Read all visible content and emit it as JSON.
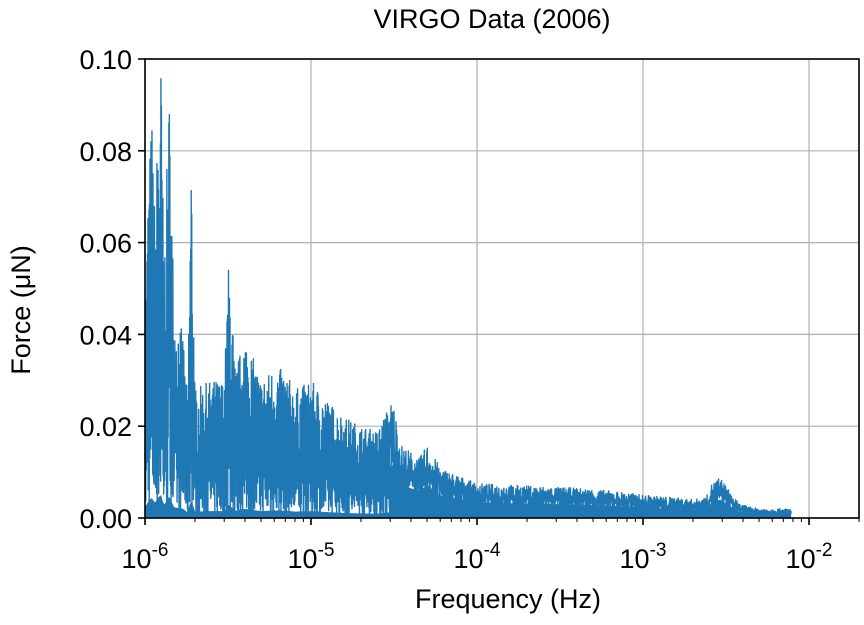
{
  "chart_data": {
    "type": "line",
    "title": "VIRGO Data (2006)",
    "xlabel": "Frequency (Hz)",
    "ylabel": "Force (μN)",
    "xscale": "log",
    "xlim": [
      1e-06,
      0.02
    ],
    "ylim": [
      0,
      0.1
    ],
    "grid": true,
    "color": "#1f77b4",
    "x_ticks": [
      {
        "value": 1e-06,
        "base": "10",
        "exp": "-6"
      },
      {
        "value": 1e-05,
        "base": "10",
        "exp": "-5"
      },
      {
        "value": 0.0001,
        "base": "10",
        "exp": "-4"
      },
      {
        "value": 0.001,
        "base": "10",
        "exp": "-3"
      },
      {
        "value": 0.01,
        "base": "10",
        "exp": "-2"
      }
    ],
    "y_ticks": [
      {
        "value": 0.0,
        "label": "0.00"
      },
      {
        "value": 0.02,
        "label": "0.02"
      },
      {
        "value": 0.04,
        "label": "0.04"
      },
      {
        "value": 0.06,
        "label": "0.06"
      },
      {
        "value": 0.08,
        "label": "0.08"
      },
      {
        "value": 0.1,
        "label": "0.10"
      }
    ],
    "series": [
      {
        "x_range": [
          1e-06,
          0.0078
        ],
        "envelope": [
          [
            1e-06,
            0.045
          ],
          [
            1.05e-06,
            0.075
          ],
          [
            1.1e-06,
            0.088
          ],
          [
            1.15e-06,
            0.065
          ],
          [
            1.2e-06,
            0.09
          ],
          [
            1.25e-06,
            0.1
          ],
          [
            1.3e-06,
            0.055
          ],
          [
            1.4e-06,
            0.093
          ],
          [
            1.5e-06,
            0.046
          ],
          [
            1.7e-06,
            0.04
          ],
          [
            1.8e-06,
            0.025
          ],
          [
            1.9e-06,
            0.08
          ],
          [
            2e-06,
            0.028
          ],
          [
            2.5e-06,
            0.03
          ],
          [
            3e-06,
            0.03
          ],
          [
            3.2e-06,
            0.057
          ],
          [
            3.5e-06,
            0.032
          ],
          [
            4e-06,
            0.04
          ],
          [
            5e-06,
            0.03
          ],
          [
            6e-06,
            0.033
          ],
          [
            7e-06,
            0.032
          ],
          [
            8e-06,
            0.028
          ],
          [
            1e-05,
            0.03
          ],
          [
            1.3e-05,
            0.025
          ],
          [
            1.6e-05,
            0.022
          ],
          [
            2e-05,
            0.02
          ],
          [
            2.5e-05,
            0.019
          ],
          [
            3.1e-05,
            0.026
          ],
          [
            3.5e-05,
            0.016
          ],
          [
            4.5e-05,
            0.013
          ],
          [
            5e-05,
            0.016
          ],
          [
            6e-05,
            0.011
          ],
          [
            8e-05,
            0.009
          ],
          [
            0.0001,
            0.0075
          ],
          [
            0.0002,
            0.007
          ],
          [
            0.0004,
            0.0065
          ],
          [
            0.0007,
            0.0058
          ],
          [
            0.001,
            0.005
          ],
          [
            0.0015,
            0.0045
          ],
          [
            0.002,
            0.004
          ],
          [
            0.0024,
            0.0045
          ],
          [
            0.0026,
            0.0075
          ],
          [
            0.0029,
            0.009
          ],
          [
            0.0033,
            0.006
          ],
          [
            0.0038,
            0.003
          ],
          [
            0.005,
            0.002
          ],
          [
            0.0078,
            0.002
          ]
        ]
      }
    ]
  }
}
